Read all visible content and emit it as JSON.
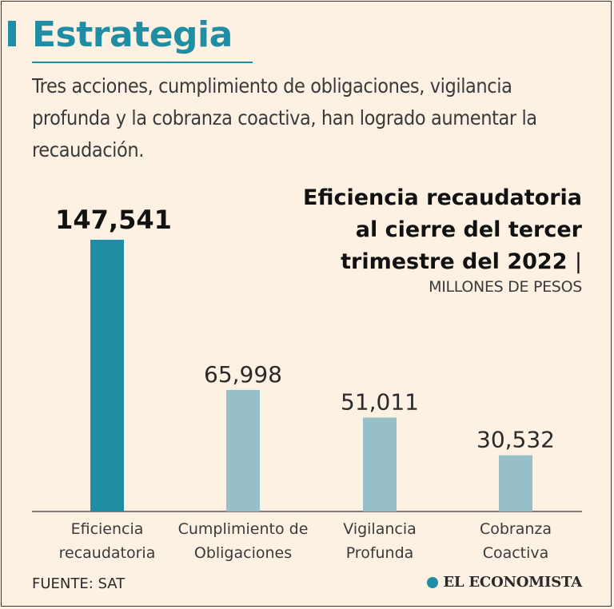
{
  "header": {
    "title": "Estrategia",
    "intro": "Tres acciones, cumplimiento de obligaciones, vigilancia profunda y la cobranza coactiva, han logrado aumentar la recaudación."
  },
  "chart_data": {
    "type": "bar",
    "title_lines": [
      "Eficiencia recaudatoria",
      "al cierre del tercer",
      "trimestre del 2022"
    ],
    "title_separator": "|",
    "unit": "MILLONES DE PESOS",
    "categories": [
      [
        "Eficiencia",
        "recaudatoria"
      ],
      [
        "Cumplimiento de",
        "Obligaciones"
      ],
      [
        "Vigilancia",
        "Profunda"
      ],
      [
        "Cobranza",
        "Coactiva"
      ]
    ],
    "values": [
      147541,
      65998,
      51011,
      30532
    ],
    "value_labels": [
      "147,541",
      "65,998",
      "51,011",
      "30,532"
    ],
    "ylim": [
      0,
      147541
    ],
    "grid": false,
    "colors": {
      "highlight": "#1f8ea4",
      "default": "#97bfc8",
      "axis": "#555555"
    }
  },
  "footer": {
    "source": "FUENTE: SAT",
    "brand": "EL ECONOMISTA",
    "brand_icon": "globe-icon"
  }
}
